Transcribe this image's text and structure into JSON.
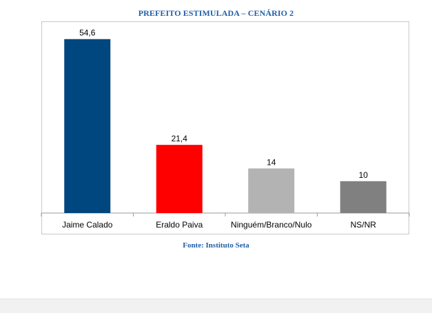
{
  "chart_data": {
    "type": "bar",
    "title": "PREFEITO ESTIMULADA – CENÁRIO 2",
    "source": "Fonte: Instituto Seta",
    "categories": [
      "Jaime Calado",
      "Eraldo Paiva",
      "Ninguém/Branco/Nulo",
      "NS/NR"
    ],
    "values": [
      54.6,
      21.4,
      14,
      10
    ],
    "value_labels": [
      "54,6",
      "21,4",
      "14",
      "10"
    ],
    "colors": [
      "#00467f",
      "#ff0000",
      "#b3b3b3",
      "#808080"
    ],
    "xlabel": "",
    "ylabel": "",
    "ylim": [
      0,
      55
    ],
    "grid": false,
    "legend": "none"
  }
}
